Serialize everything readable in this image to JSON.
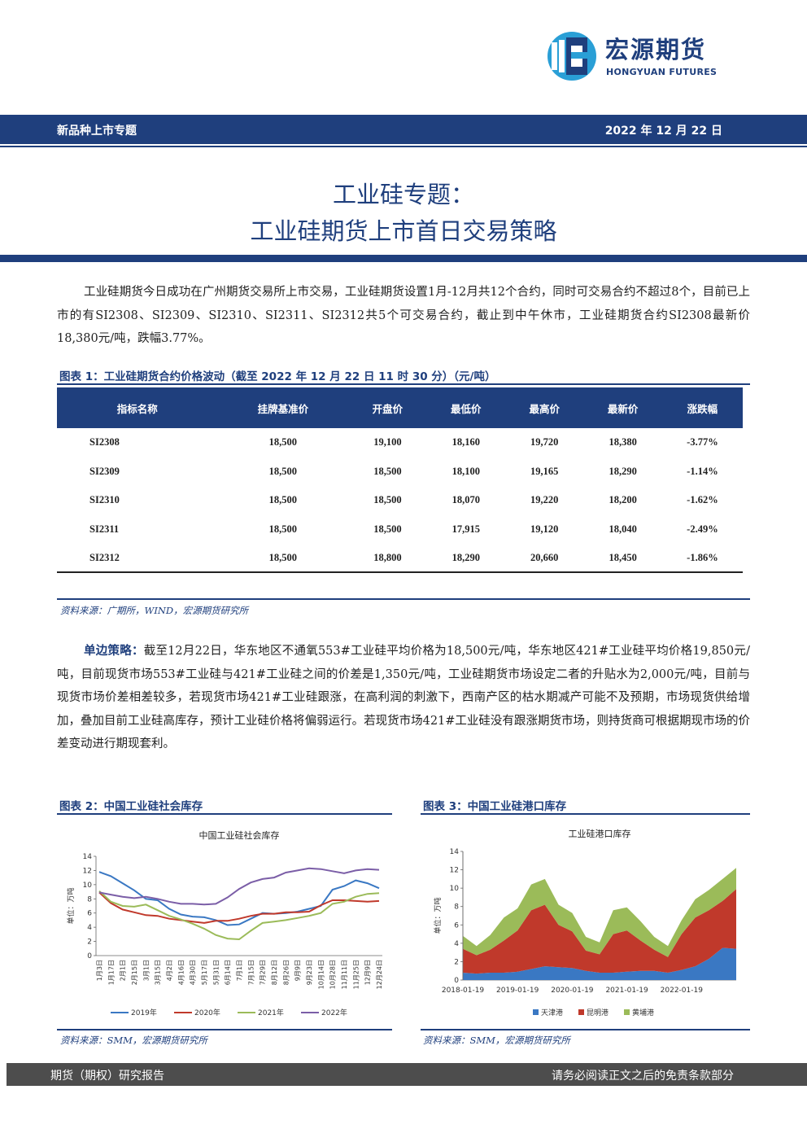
{
  "header": {
    "brand_cn": "宏源期货",
    "brand_en": "HONGYUAN FUTURES",
    "topic": "新品种上市专题",
    "date": "2022 年 12 月 22 日",
    "colors": {
      "brand": "#1f3f7d",
      "accent": "#2a9fd6"
    }
  },
  "title": {
    "line1": "工业硅专题：",
    "line2": "工业硅期货上市首日交易策略"
  },
  "intro": "工业硅期货今日成功在广州期货交易所上市交易，工业硅期货设置1月-12月共12个合约，同时可交易合约不超过8个，目前已上市的有SI2308、SI2309、SI2310、SI2311、SI2312共5个可交易合约，截止到中午休市，工业硅期货合约SI2308最新价18,380元/吨，跌幅3.77%。",
  "table1": {
    "caption": "图表 1：工业硅期货合约价格波动（截至 2022 年 12 月 22 日 11 时 30 分）（元/吨）",
    "headers": [
      "指标名称",
      "挂牌基准价",
      "开盘价",
      "最低价",
      "最高价",
      "最新价",
      "涨跌幅"
    ],
    "rows": [
      [
        "SI2308",
        "18,500",
        "19,100",
        "18,160",
        "19,720",
        "18,380",
        "-3.77%"
      ],
      [
        "SI2309",
        "18,500",
        "18,500",
        "18,100",
        "19,165",
        "18,290",
        "-1.14%"
      ],
      [
        "SI2310",
        "18,500",
        "18,500",
        "18,070",
        "19,220",
        "18,200",
        "-1.62%"
      ],
      [
        "SI2311",
        "18,500",
        "18,500",
        "17,915",
        "19,120",
        "18,040",
        "-2.49%"
      ],
      [
        "SI2312",
        "18,500",
        "18,800",
        "18,290",
        "20,660",
        "18,450",
        "-1.86%"
      ]
    ],
    "source": "资料来源：广期所，WIND，宏源期货研究所"
  },
  "strategy": {
    "lead": "单边策略：",
    "text": "截至12月22日，华东地区不通氧553#工业硅平均价格为18,500元/吨，华东地区421#工业硅平均价格19,850元/吨，目前现货市场553#工业硅与421#工业硅之间的价差是1,350元/吨，工业硅期货市场设定二者的升贴水为2,000元/吨，目前与现货市场价差相差较多，若现货市场421#工业硅跟涨，在高利润的刺激下，西南产区的枯水期减产可能不及预期，市场现货供给增加，叠加目前工业硅高库存，预计工业硅价格将偏弱运行。若现货市场421#工业硅没有跟涨期货市场，则持货商可根据期现市场的价差变动进行期现套利。"
  },
  "figure2": {
    "caption": "图表 2：中国工业硅社会库存",
    "source": "资料来源：SMM，宏源期货研究所"
  },
  "figure3": {
    "caption": "图表 3：中国工业硅港口库存",
    "source": "资料来源：SMM，宏源期货研究所"
  },
  "chart_data": [
    {
      "type": "line",
      "title": "中国工业硅社会库存",
      "ylabel": "单位：万吨",
      "ylim": [
        0,
        14
      ],
      "yticks": [
        0,
        2,
        4,
        6,
        8,
        10,
        12,
        14
      ],
      "categories": [
        "1月3日",
        "1月17日",
        "2月1日",
        "2月15日",
        "3月1日",
        "3月15日",
        "4月2日",
        "4月16日",
        "4月30日",
        "5月17日",
        "5月31日",
        "6月14日",
        "7月1日",
        "7月15日",
        "7月29日",
        "8月12日",
        "8月26日",
        "9月9日",
        "9月23日",
        "10月14日",
        "10月28日",
        "11月11日",
        "11月25日",
        "12月9日",
        "12月24日"
      ],
      "series": [
        {
          "name": "2019年",
          "color": "#3a78c3",
          "values": [
            11.8,
            11.2,
            10.2,
            9.2,
            8.0,
            7.8,
            6.6,
            5.8,
            5.5,
            5.4,
            5.0,
            4.3,
            4.4,
            5.2,
            6.0,
            5.9,
            6.0,
            6.2,
            6.6,
            7.0,
            9.3,
            9.8,
            10.6,
            10.2,
            9.5
          ]
        },
        {
          "name": "2020年",
          "color": "#c0392b",
          "values": [
            8.9,
            7.4,
            6.5,
            6.1,
            5.7,
            5.6,
            5.2,
            5.0,
            4.8,
            4.6,
            4.9,
            4.9,
            5.2,
            5.6,
            5.9,
            5.9,
            6.1,
            6.1,
            6.2,
            7.1,
            7.8,
            7.8,
            7.7,
            7.6,
            7.7
          ]
        },
        {
          "name": "2021年",
          "color": "#9bbb59",
          "values": [
            9.1,
            7.6,
            7.0,
            6.9,
            7.2,
            6.4,
            5.6,
            5.1,
            4.5,
            3.8,
            2.9,
            2.4,
            2.3,
            3.5,
            4.6,
            4.8,
            5.0,
            5.3,
            5.6,
            6.0,
            7.3,
            7.6,
            8.3,
            8.7,
            8.8
          ]
        },
        {
          "name": "2022年",
          "color": "#7b5ea7",
          "values": [
            8.9,
            8.6,
            8.3,
            8.1,
            8.3,
            8.0,
            7.6,
            7.3,
            7.3,
            7.2,
            7.3,
            8.2,
            9.4,
            10.3,
            10.8,
            11.0,
            11.7,
            12.0,
            12.3,
            12.2,
            11.9,
            11.6,
            12.0,
            12.2,
            12.1
          ]
        }
      ],
      "legend": "bottom"
    },
    {
      "type": "area",
      "stacked": true,
      "title": "工业硅港口库存",
      "ylabel": "单位：万吨",
      "ylim": [
        0,
        14
      ],
      "yticks": [
        0,
        2,
        4,
        6,
        8,
        10,
        12,
        14
      ],
      "x": [
        "2018-01-19",
        "2018-04-19",
        "2018-07-19",
        "2018-10-19",
        "2019-01-19",
        "2019-04-19",
        "2019-07-19",
        "2019-10-19",
        "2020-01-19",
        "2020-04-19",
        "2020-07-19",
        "2020-10-19",
        "2021-01-19",
        "2021-04-19",
        "2021-07-19",
        "2021-10-19",
        "2022-01-19",
        "2022-04-19",
        "2022-07-19",
        "2022-10-19",
        "2022-12-19"
      ],
      "xticks": [
        "2018-01-19",
        "2019-01-19",
        "2020-01-19",
        "2021-01-19",
        "2022-01-19"
      ],
      "series": [
        {
          "name": "天津港",
          "color": "#3a78c3",
          "values": [
            0.8,
            0.7,
            0.8,
            0.8,
            0.9,
            1.2,
            1.5,
            1.4,
            1.3,
            1.0,
            0.8,
            0.8,
            0.9,
            1.0,
            1.0,
            0.8,
            1.1,
            1.5,
            2.3,
            3.5,
            3.4
          ]
        },
        {
          "name": "昆明港",
          "color": "#c0392b",
          "values": [
            2.6,
            2.0,
            2.5,
            3.5,
            4.5,
            6.4,
            6.7,
            4.6,
            4.0,
            2.2,
            2.0,
            4.2,
            4.5,
            3.3,
            2.3,
            1.7,
            3.9,
            5.3,
            5.3,
            5.1,
            6.5
          ]
        },
        {
          "name": "黄埔港",
          "color": "#9bbb59",
          "values": [
            1.4,
            1.0,
            1.6,
            2.5,
            2.4,
            2.8,
            2.8,
            2.2,
            2.0,
            1.5,
            1.3,
            2.6,
            2.5,
            2.1,
            1.4,
            1.2,
            1.5,
            2.0,
            2.2,
            2.4,
            2.3
          ]
        }
      ],
      "legend": "bottom"
    }
  ],
  "footer": {
    "left": "期货（期权）研究报告",
    "right": "请务必阅读正文之后的免责条款部分"
  }
}
